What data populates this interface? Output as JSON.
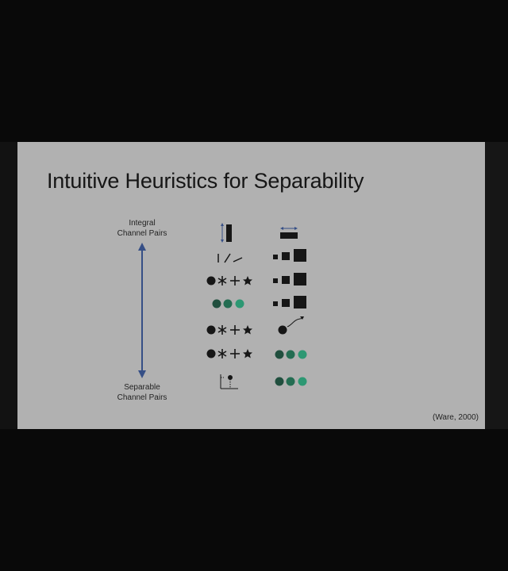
{
  "slide": {
    "title": "Intuitive Heuristics for Separability",
    "axis": {
      "top_label_line1": "Integral",
      "top_label_line2": "Channel Pairs",
      "bottom_label_line1": "Separable",
      "bottom_label_line2": "Channel Pairs"
    },
    "credit": "(Ware, 2000)"
  },
  "colors": {
    "slide_background": "#d8d8d8",
    "frame_background": "#000000",
    "arrow_blue": "#3a5aa0",
    "green_dark": "#1e5a45",
    "green_mid": "#23805e",
    "green_light": "#2fb888",
    "glyph": "#111111"
  },
  "icons": [
    "vertical-bar-size-icon",
    "horizontal-bar-size-icon",
    "line-orientation-icon",
    "square-size-icon",
    "shape-circle-icon",
    "shape-asterisk-icon",
    "shape-plus-icon",
    "shape-star-icon",
    "green-circles-icon",
    "circle-motion-icon",
    "position-axes-icon"
  ]
}
